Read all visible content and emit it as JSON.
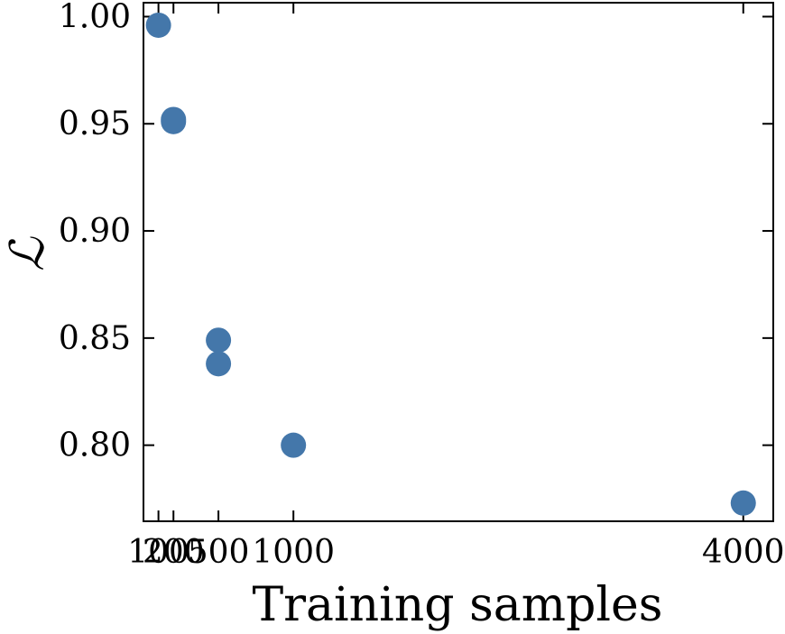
{
  "chart_data": {
    "type": "scatter",
    "title": "",
    "xlabel": "Training samples",
    "ylabel": "ℒ",
    "xlim": [
      0,
      4200
    ],
    "ylim": [
      0.7645,
      1.0065
    ],
    "x_ticks": [
      100,
      200,
      500,
      1000,
      4000
    ],
    "x_tick_labels": [
      "100",
      "200",
      "500",
      "1000",
      "4000"
    ],
    "y_ticks": [
      0.8,
      0.85,
      0.9,
      0.95,
      1.0
    ],
    "y_tick_labels": [
      "0.80",
      "0.85",
      "0.90",
      "0.95",
      "1.00"
    ],
    "grid": false,
    "legend": "none",
    "colors": {
      "points": "#4477aa"
    },
    "series": [
      {
        "points": [
          {
            "x": 100,
            "y": 0.996
          },
          {
            "x": 200,
            "y": 0.952
          },
          {
            "x": 200,
            "y": 0.951
          },
          {
            "x": 500,
            "y": 0.849
          },
          {
            "x": 500,
            "y": 0.838
          },
          {
            "x": 1000,
            "y": 0.8
          },
          {
            "x": 4000,
            "y": 0.773
          }
        ]
      }
    ]
  }
}
